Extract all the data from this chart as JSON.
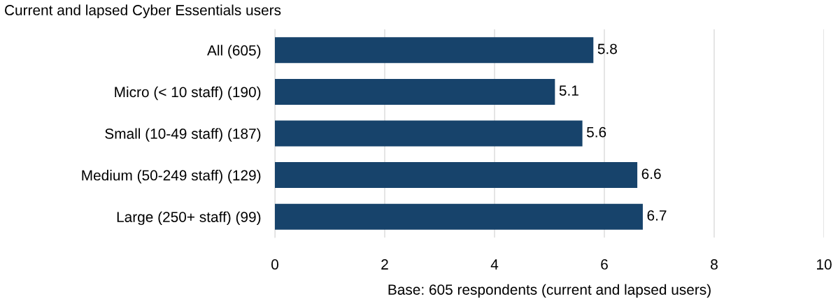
{
  "chart_data": {
    "type": "bar",
    "orientation": "horizontal",
    "title": "Current and lapsed Cyber Essentials users",
    "xlabel": "Base: 605 respondents (current and lapsed users)",
    "categories": [
      "All (605)",
      "Micro (< 10 staff) (190)",
      "Small (10-49 staff) (187)",
      "Medium (50-249 staff) (129)",
      "Large (250+ staff) (99)"
    ],
    "values": [
      5.8,
      5.1,
      5.6,
      6.6,
      6.7
    ],
    "color": "#17436b",
    "data_labels": true,
    "xlim": [
      0,
      10
    ],
    "xticks": [
      0,
      2,
      4,
      6,
      8,
      10
    ],
    "grid": "x",
    "legend": false
  }
}
